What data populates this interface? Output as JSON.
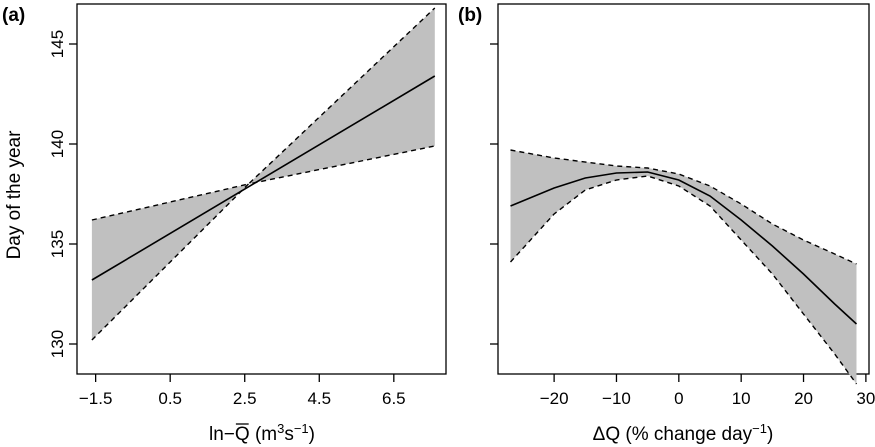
{
  "chart_data": [
    {
      "type": "line",
      "panel_label": "(a)",
      "xlabel_parts": {
        "prefix": "ln−",
        "var": "Q",
        "units_open": " (m",
        "sup1": "3",
        "mid": "s",
        "sup2": "−1",
        "units_close": ")"
      },
      "ylabel": "Day of the year",
      "xlim": [
        -2.0,
        7.9
      ],
      "ylim": [
        128.5,
        147.0
      ],
      "xticks": [
        -1.5,
        0.5,
        2.5,
        4.5,
        6.5
      ],
      "xtick_labels": [
        "−1.5",
        "0.5",
        "2.5",
        "4.5",
        "6.5"
      ],
      "yticks": [
        130,
        135,
        140,
        145
      ],
      "ytick_labels": [
        "130",
        "135",
        "140",
        "145"
      ],
      "series": [
        {
          "role": "fit",
          "style": "solid",
          "x": [
            -1.6,
            7.6
          ],
          "y": [
            133.2,
            143.4
          ]
        },
        {
          "role": "upper",
          "style": "dashed",
          "x": [
            -1.6,
            2.6,
            7.6
          ],
          "y": [
            136.2,
            138.0,
            146.8
          ]
        },
        {
          "role": "lower",
          "style": "dashed",
          "x": [
            -1.6,
            2.6,
            7.6
          ],
          "y": [
            130.2,
            138.0,
            139.9
          ]
        }
      ],
      "band_color": "#c0c0c0",
      "grid": false
    },
    {
      "type": "line",
      "panel_label": "(b)",
      "xlabel_parts": {
        "prefix": "ΔQ (% change day",
        "sup": "−1",
        "suffix": ")"
      },
      "ylabel": "",
      "xlim": [
        -29,
        30.5
      ],
      "ylim": [
        128.5,
        147.0
      ],
      "xticks": [
        -20,
        -10,
        0,
        10,
        20,
        30
      ],
      "xtick_labels": [
        "−20",
        "−10",
        "0",
        "10",
        "20",
        "30"
      ],
      "yticks": [
        130,
        135,
        140,
        145
      ],
      "ytick_labels": [],
      "series": [
        {
          "role": "fit",
          "style": "solid",
          "x": [
            -27,
            -20,
            -15,
            -10,
            -5,
            0,
            5,
            10,
            15,
            20,
            25,
            28.5
          ],
          "y": [
            136.9,
            137.8,
            138.3,
            138.55,
            138.6,
            138.2,
            137.4,
            136.2,
            134.9,
            133.5,
            132.0,
            131.0
          ]
        },
        {
          "role": "upper",
          "style": "dashed",
          "x": [
            -27,
            -20,
            -10,
            -5,
            0,
            5,
            10,
            15,
            20,
            25,
            28.5
          ],
          "y": [
            139.7,
            139.3,
            138.9,
            138.8,
            138.5,
            137.9,
            137.0,
            136.0,
            135.2,
            134.5,
            134.0
          ]
        },
        {
          "role": "lower",
          "style": "dashed",
          "x": [
            -27,
            -20,
            -15,
            -10,
            -5,
            0,
            5,
            10,
            15,
            20,
            25,
            28.5
          ],
          "y": [
            134.1,
            136.5,
            137.7,
            138.2,
            138.4,
            137.9,
            136.9,
            135.2,
            133.5,
            131.5,
            129.5,
            128.0
          ]
        }
      ],
      "band_color": "#c0c0c0",
      "grid": false
    }
  ]
}
